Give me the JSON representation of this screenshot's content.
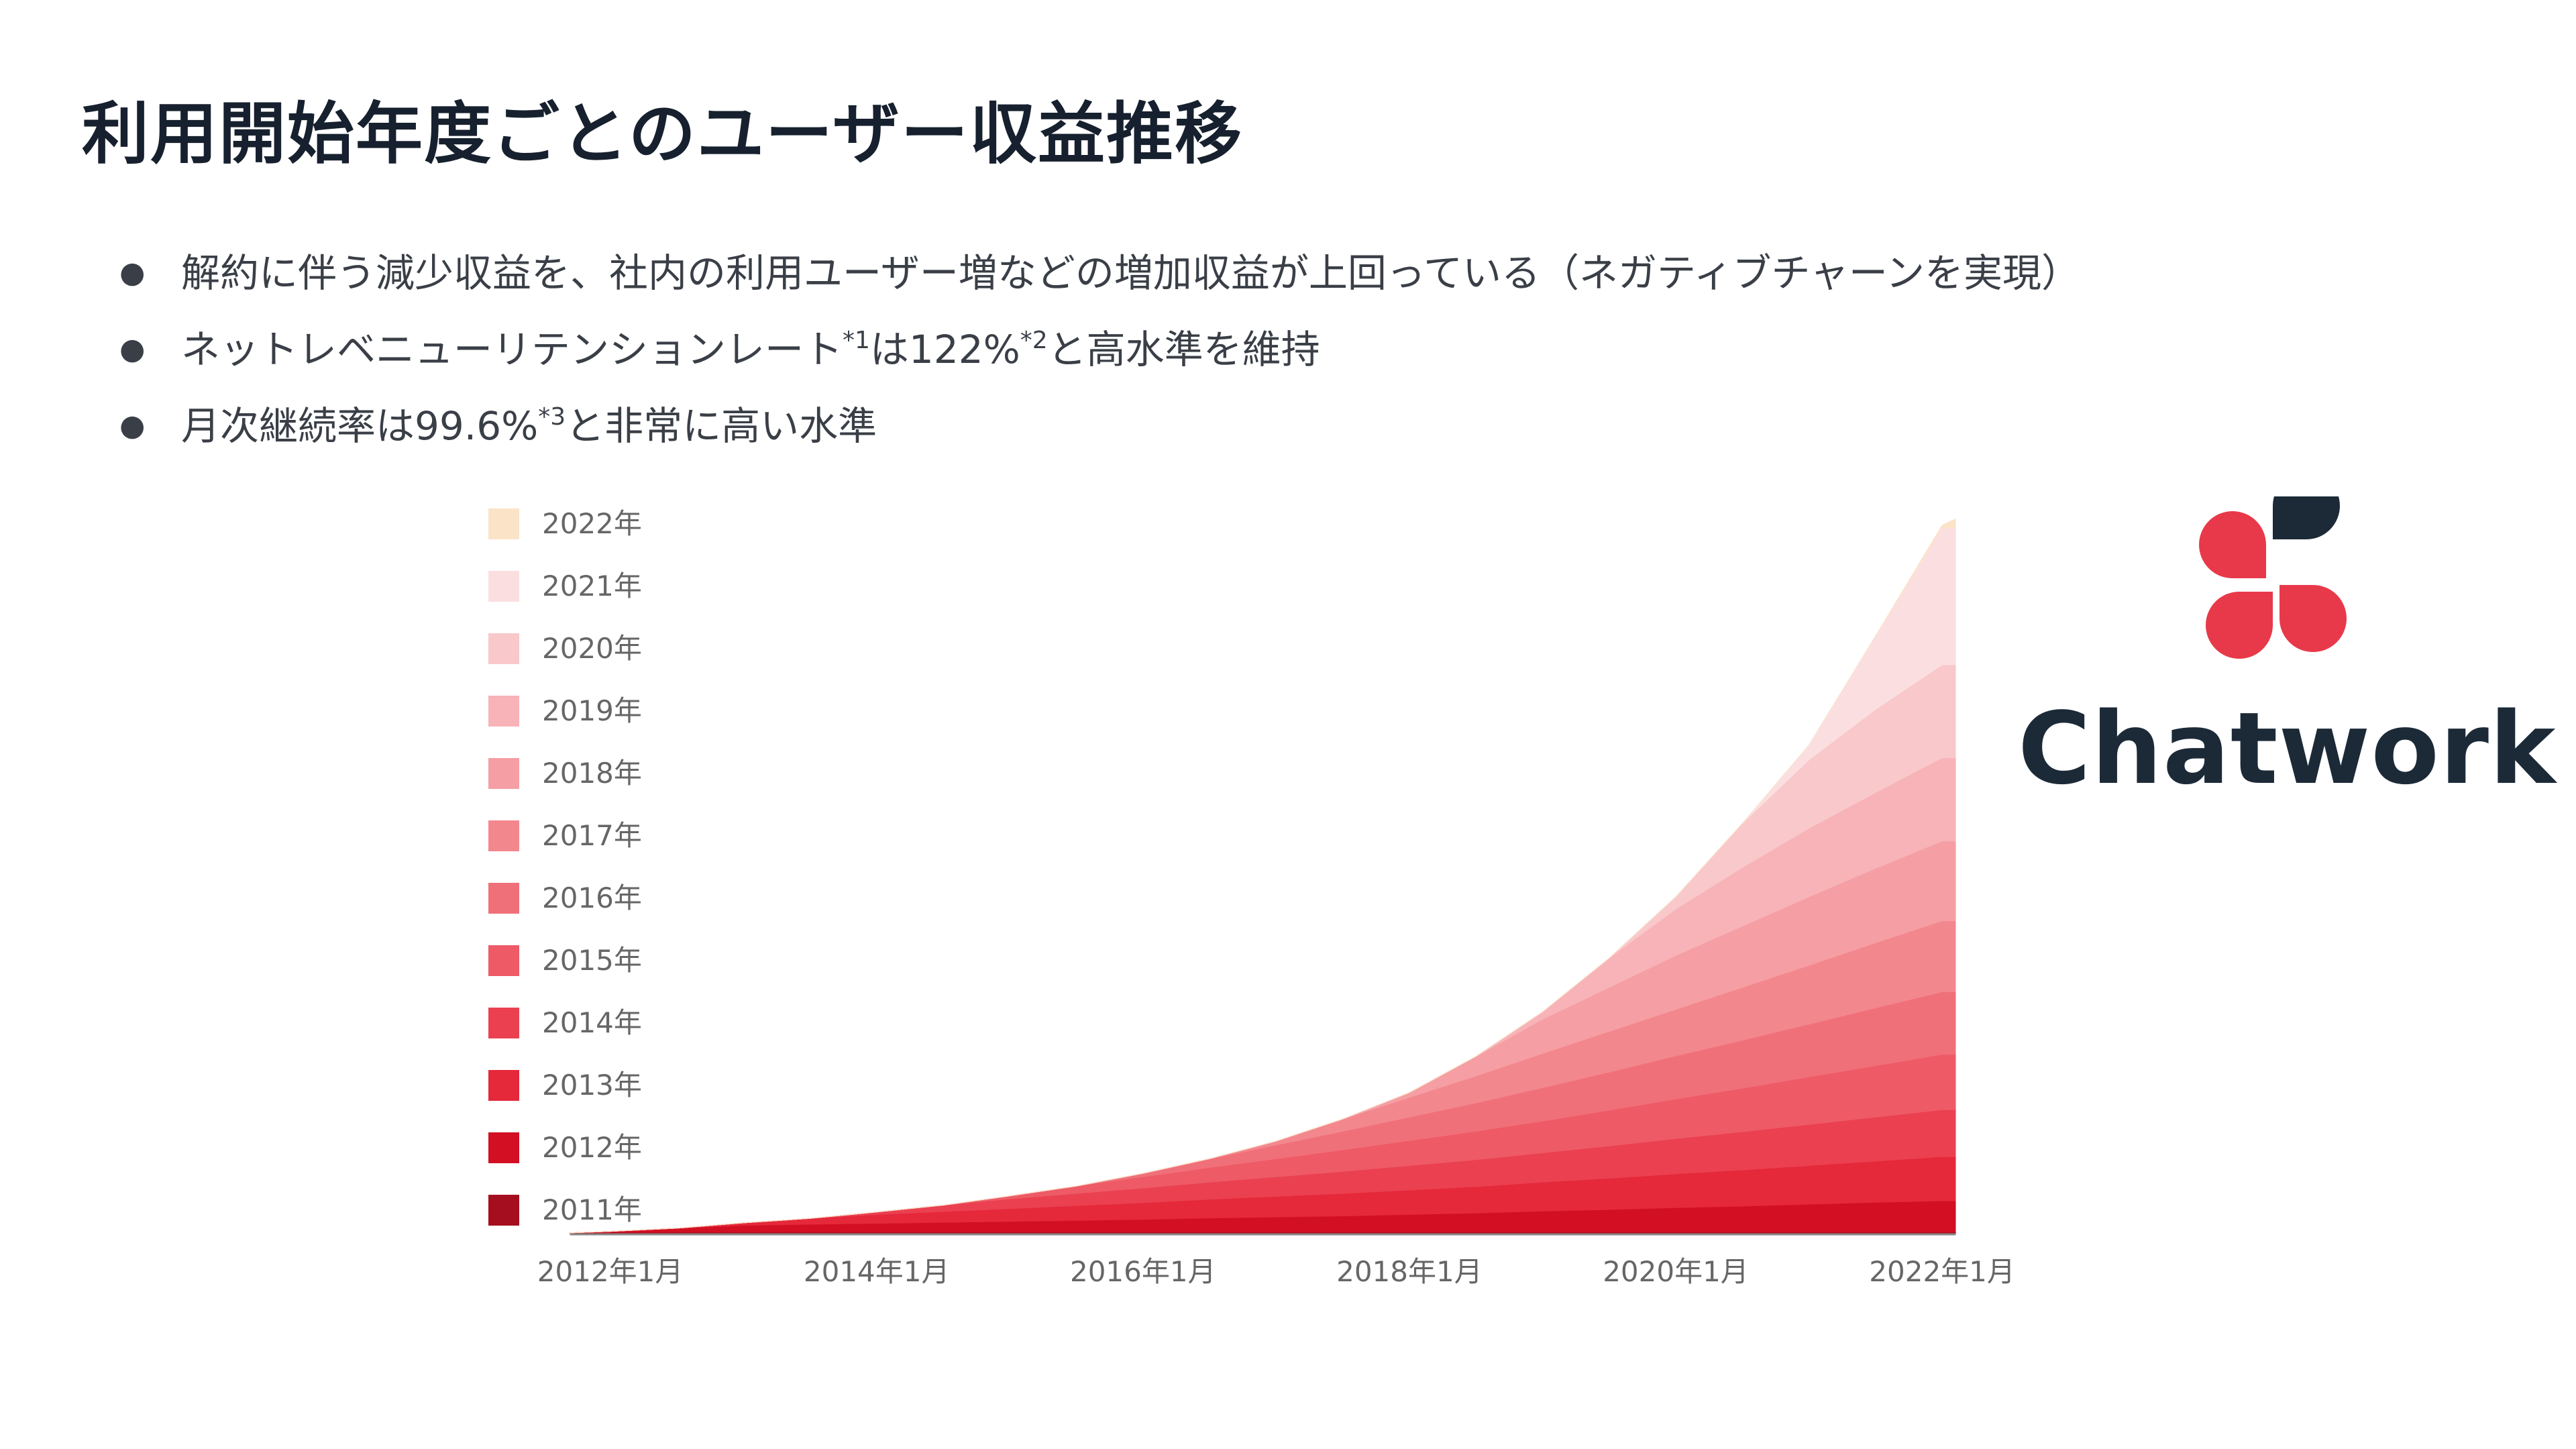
{
  "page": {
    "title": "利用開始年度ごとのユーザー収益推移"
  },
  "bullets": [
    {
      "text": "解約に伴う減少収益を、社内の利用ユーザー増などの増加収益が上回っている（ネガティブチャーンを実現）",
      "sup1": "",
      "mid": "",
      "sup2": "",
      "tail": ""
    },
    {
      "text": "ネットレベニューリテンションレート",
      "sup1": "*1",
      "mid": "は122%",
      "sup2": "*2",
      "tail": "と高水準を維持"
    },
    {
      "text": "月次継続率は99.6%",
      "sup1": "*3",
      "mid": "と非常に高い水準",
      "sup2": "",
      "tail": ""
    }
  ],
  "logo": {
    "text": "Chatwork",
    "colors": {
      "red": "#e8394a",
      "navy": "#1c2a38"
    }
  },
  "chart_data": {
    "type": "area",
    "stacked": true,
    "x_tick_labels": [
      "2012年1月",
      "2014年1月",
      "2016年1月",
      "2018年1月",
      "2020年1月",
      "2022年1月"
    ],
    "x_range": [
      "2011年9月",
      "2022年6月"
    ],
    "legend_position": "left",
    "legend_order": [
      "2022年",
      "2021年",
      "2020年",
      "2019年",
      "2018年",
      "2017年",
      "2016年",
      "2015年",
      "2014年",
      "2013年",
      "2012年",
      "2011年"
    ],
    "grid": false,
    "y_axis_labels": false,
    "x": [
      2011.7,
      2012.0,
      2012.5,
      2013.0,
      2013.5,
      2014.0,
      2014.5,
      2015.0,
      2015.5,
      2016.0,
      2016.5,
      2017.0,
      2017.5,
      2018.0,
      2018.5,
      2019.0,
      2019.5,
      2020.0,
      2020.5,
      2021.0,
      2021.5,
      2022.0,
      2022.1
    ],
    "series": [
      {
        "name": "2011年",
        "color": "#a50e1e",
        "values": [
          0.3,
          0.4,
          0.45,
          0.45,
          0.45,
          0.45,
          0.45,
          0.45,
          0.45,
          0.45,
          0.45,
          0.45,
          0.45,
          0.45,
          0.45,
          0.45,
          0.45,
          0.45,
          0.45,
          0.45,
          0.45,
          0.45,
          0.45
        ]
      },
      {
        "name": "2012年",
        "color": "#d20f23",
        "values": [
          0,
          0.2,
          0.8,
          1.4,
          1.6,
          1.8,
          2,
          2.2,
          2.4,
          2.6,
          2.9,
          3.1,
          3.3,
          3.6,
          3.9,
          4.3,
          4.6,
          5,
          5.3,
          5.7,
          6.1,
          6.4,
          6.4
        ]
      },
      {
        "name": "2013年",
        "color": "#e5283a",
        "values": [
          0,
          0,
          0,
          0.5,
          1.2,
          1.8,
          2.2,
          2.6,
          3,
          3.4,
          3.8,
          4.2,
          4.6,
          5,
          5.4,
          5.9,
          6.4,
          6.9,
          7.4,
          7.9,
          8.4,
          9,
          9
        ]
      },
      {
        "name": "2014年",
        "color": "#ea4050",
        "values": [
          0,
          0,
          0,
          0,
          0,
          0.5,
          1.3,
          2,
          2.5,
          3,
          3.5,
          4,
          4.5,
          5,
          5.5,
          6,
          6.6,
          7.2,
          7.8,
          8.4,
          9,
          9.6,
          9.6
        ]
      },
      {
        "name": "2015年",
        "color": "#ee5a66",
        "values": [
          0,
          0,
          0,
          0,
          0,
          0,
          0,
          0.6,
          1.5,
          2.3,
          3,
          3.7,
          4.4,
          5.1,
          5.8,
          6.5,
          7.3,
          8.1,
          8.9,
          9.7,
          10.5,
          11.3,
          11.3
        ]
      },
      {
        "name": "2016年",
        "color": "#f07079",
        "values": [
          0,
          0,
          0,
          0,
          0,
          0,
          0,
          0,
          0,
          0.7,
          1.8,
          2.8,
          3.8,
          4.8,
          5.8,
          6.8,
          7.8,
          8.8,
          9.8,
          10.8,
          11.8,
          12.8,
          12.8
        ]
      },
      {
        "name": "2017年",
        "color": "#f3878e",
        "values": [
          0,
          0,
          0,
          0,
          0,
          0,
          0,
          0,
          0,
          0,
          0,
          0.8,
          2.5,
          4,
          5.5,
          7,
          8.3,
          9.5,
          10.8,
          12,
          13.3,
          14.5,
          14.5
        ]
      },
      {
        "name": "2018年",
        "color": "#f59ea4",
        "values": [
          0,
          0,
          0,
          0,
          0,
          0,
          0,
          0,
          0,
          0,
          0,
          0,
          0,
          1,
          4,
          7,
          9,
          11,
          12.5,
          14,
          15.2,
          16.3,
          16.3
        ]
      },
      {
        "name": "2019年",
        "color": "#f7b3b7",
        "values": [
          0,
          0,
          0,
          0,
          0,
          0,
          0,
          0,
          0,
          0,
          0,
          0,
          0,
          0,
          0,
          1.5,
          6,
          9.5,
          12,
          14,
          15.5,
          17,
          17
        ]
      },
      {
        "name": "2020年",
        "color": "#f9c8ca",
        "values": [
          0,
          0,
          0,
          0,
          0,
          0,
          0,
          0,
          0,
          0,
          0,
          0,
          0,
          0,
          0,
          0,
          0,
          2.5,
          9,
          14,
          17,
          19,
          19
        ]
      },
      {
        "name": "2021年",
        "color": "#fbdfe0",
        "values": [
          0,
          0,
          0,
          0,
          0,
          0,
          0,
          0,
          0,
          0,
          0,
          0,
          0,
          0,
          0,
          0,
          0,
          0,
          0,
          3,
          15,
          28,
          28
        ]
      },
      {
        "name": "2022年",
        "color": "#fbe3c8",
        "values": [
          0,
          0,
          0,
          0,
          0,
          0,
          0,
          0,
          0,
          0,
          0,
          0,
          0,
          0,
          0,
          0,
          0,
          0,
          0,
          0,
          0,
          0.5,
          1.8
        ]
      }
    ],
    "y_max": 148
  }
}
